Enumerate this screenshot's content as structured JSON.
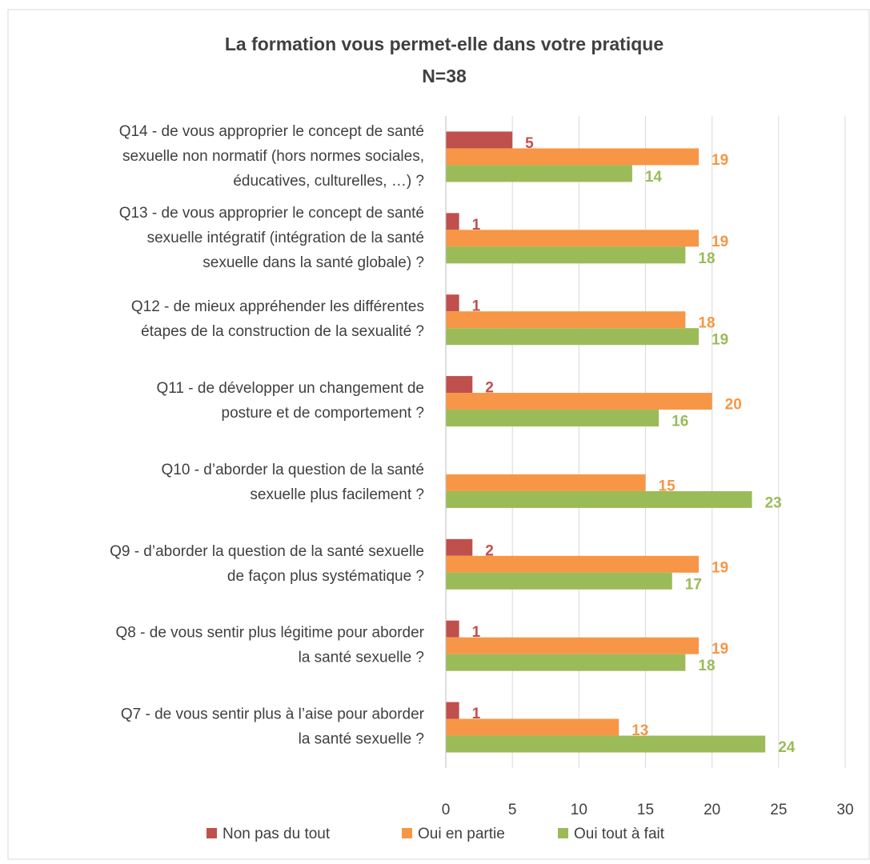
{
  "chart_data": {
    "type": "barh",
    "title": "La formation vous permet-elle dans votre pratique",
    "subtitle": "N=38",
    "categories": [
      [
        "Q14 - de vous approprier le concept de santé",
        "sexuelle non normatif (hors normes sociales,",
        "éducatives, culturelles, …) ?"
      ],
      [
        "Q13 - de vous approprier le concept de santé",
        "sexuelle intégratif (intégration de la santé",
        "sexuelle dans la santé globale) ?"
      ],
      [
        "Q12 - de mieux appréhender les différentes",
        "étapes de la construction de la sexualité ?"
      ],
      [
        "Q11 - de développer un changement  de",
        "posture et de comportement ?"
      ],
      [
        "Q10 - d’aborder la question de la santé",
        "sexuelle plus facilement ?"
      ],
      [
        "Q9 - d’aborder la question de la santé sexuelle",
        "de façon plus systématique ?"
      ],
      [
        "Q8 - de vous sentir plus légitime pour aborder",
        "la santé sexuelle ?"
      ],
      [
        "Q7 - de vous sentir plus à l’aise pour aborder",
        "la santé sexuelle ?"
      ]
    ],
    "series": [
      {
        "name": "Non pas du tout",
        "color": "#c0504d",
        "values": [
          5,
          1,
          1,
          2,
          null,
          2,
          1,
          1
        ]
      },
      {
        "name": "Oui en partie",
        "color": "#f79646",
        "values": [
          19,
          19,
          18,
          20,
          15,
          19,
          19,
          13
        ]
      },
      {
        "name": "Oui tout à fait",
        "color": "#9bbb59",
        "values": [
          14,
          18,
          19,
          16,
          23,
          17,
          18,
          24
        ]
      }
    ],
    "xlim": [
      0,
      30
    ],
    "xticks": [
      0,
      5,
      10,
      15,
      20,
      25,
      30
    ],
    "grid": true,
    "legend": "bottom"
  }
}
